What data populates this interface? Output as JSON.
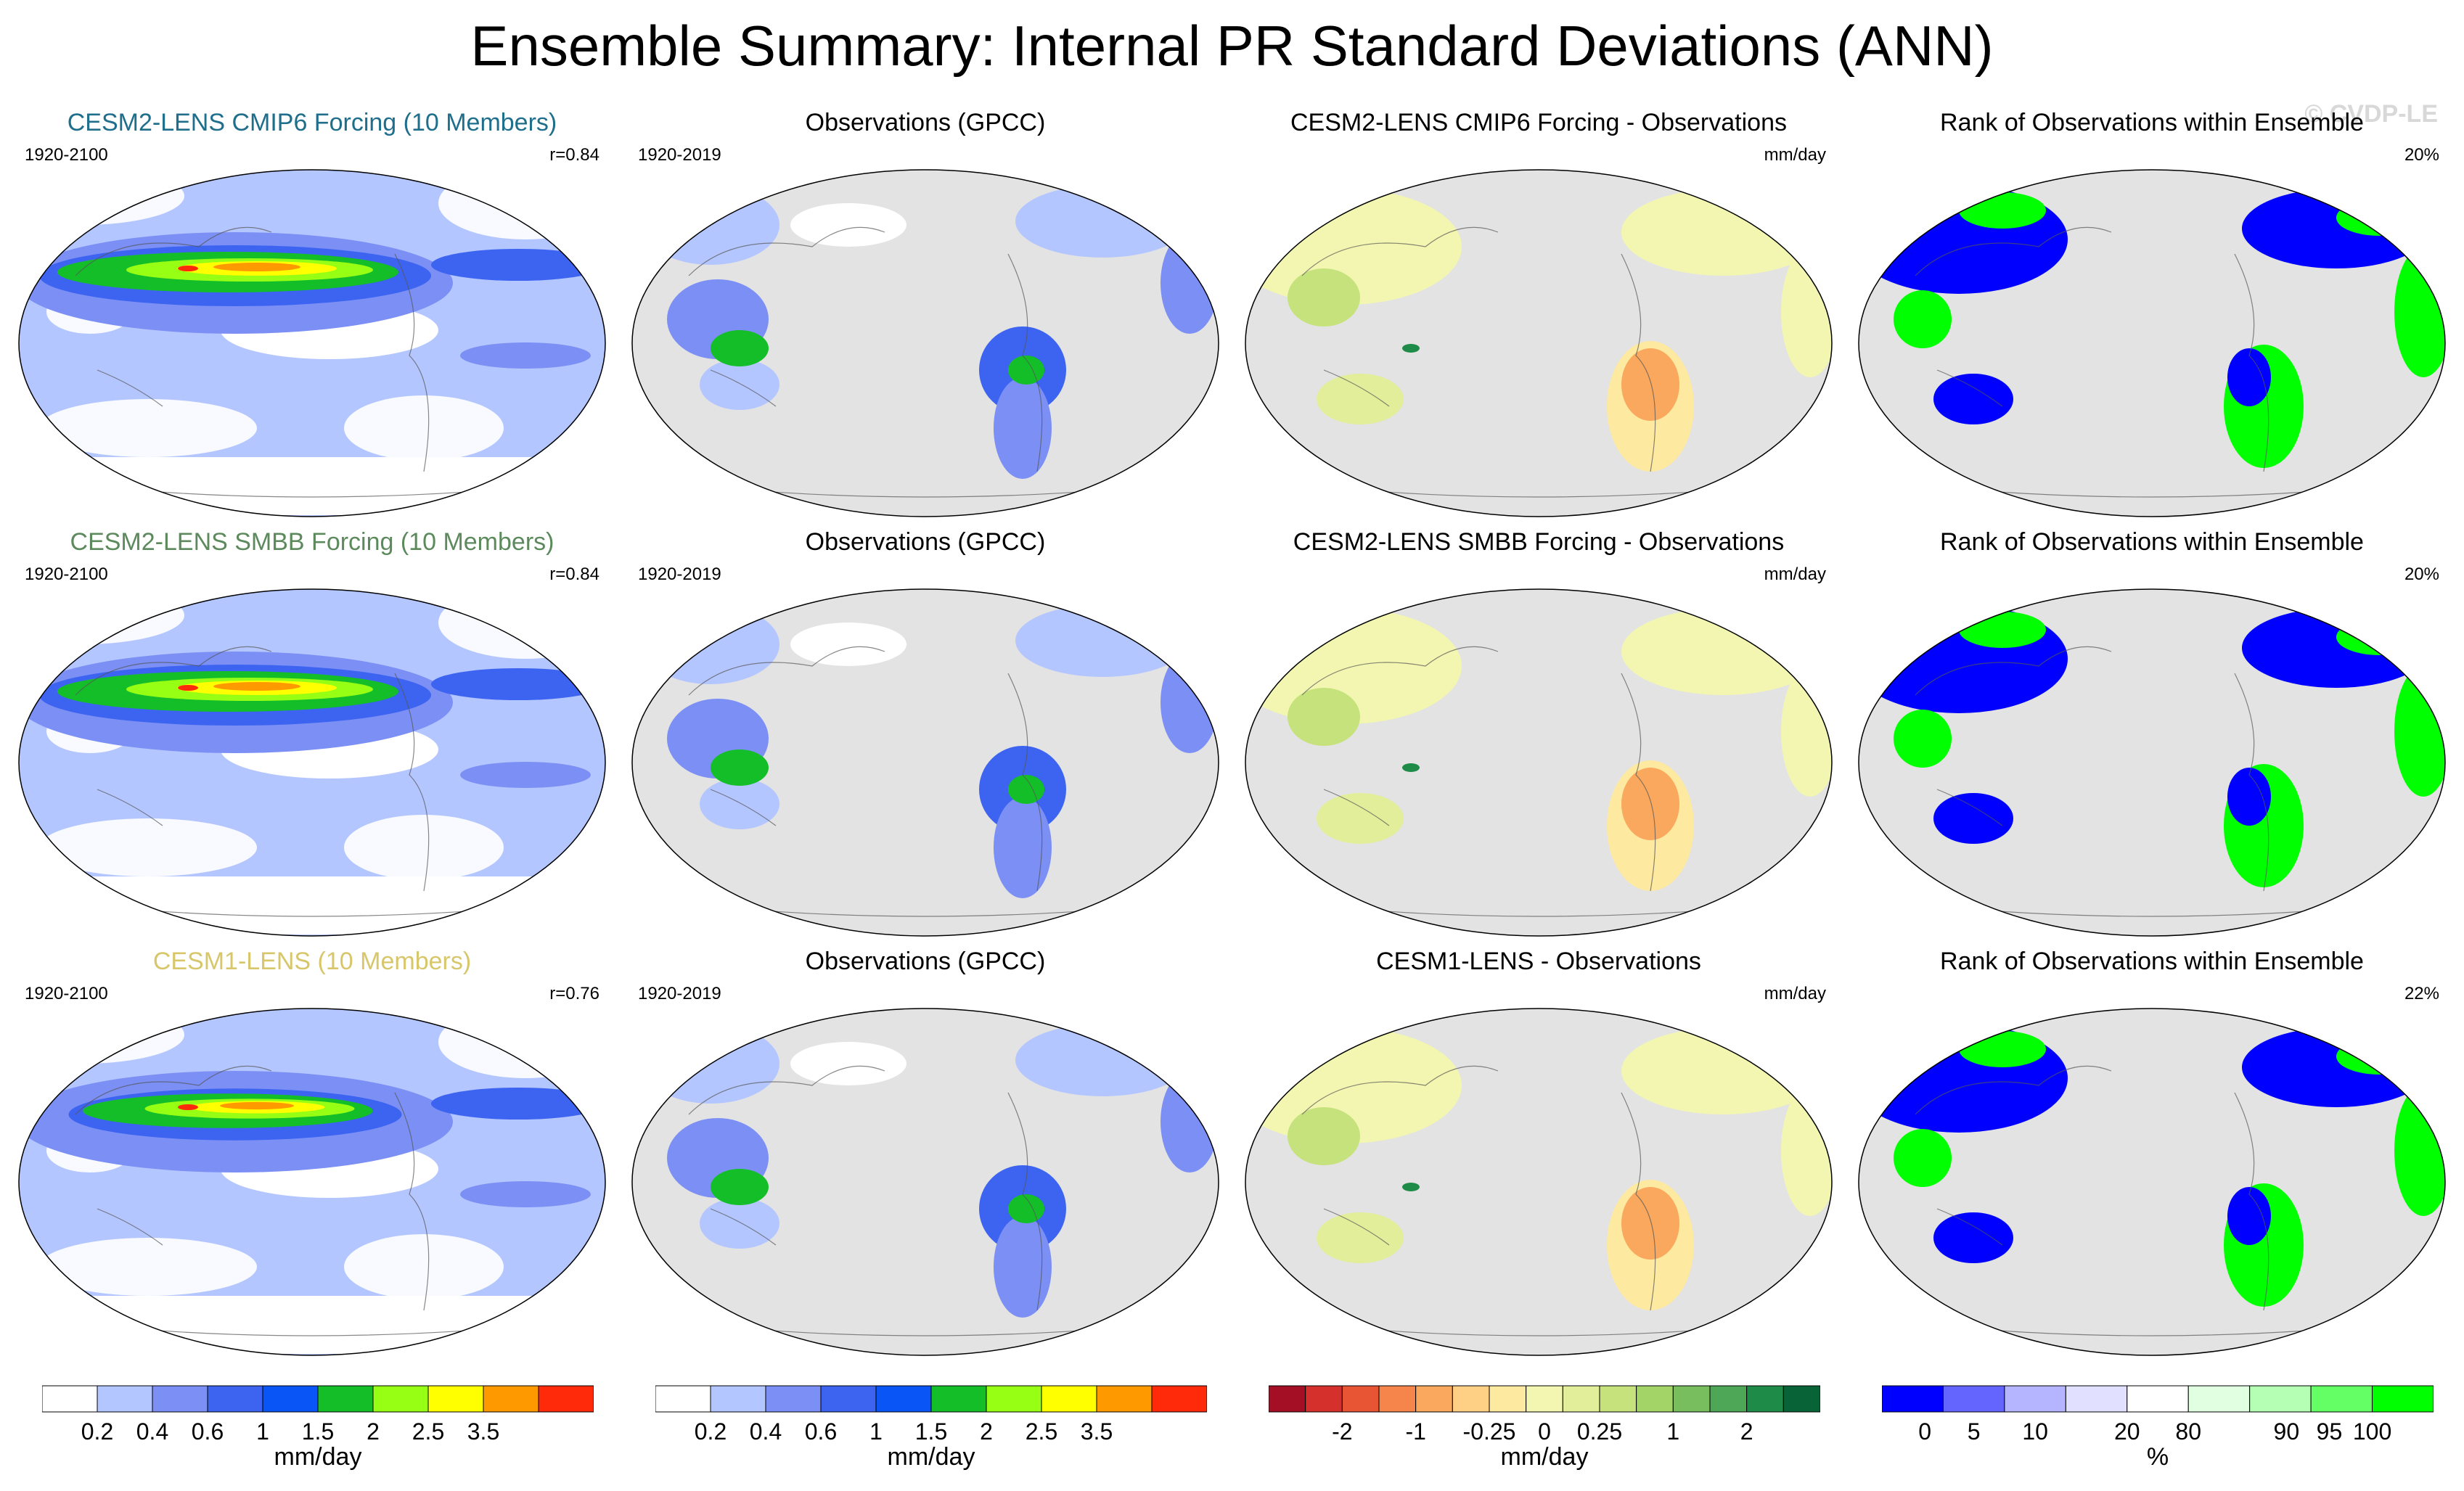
{
  "title": "Ensemble Summary: Internal PR Standard Deviations (ANN)",
  "watermark": "© CVDP-LE",
  "rows": [
    {
      "model": {
        "title": "CESM2-LENS CMIP6 Forcing (10 Members)",
        "title_color": "#1f6e8c",
        "period": "1920-2100",
        "corr": "r=0.84",
        "intensity": 1.0
      },
      "obs": {
        "title": "Observations (GPCC)",
        "period": "1920-2019"
      },
      "diff": {
        "title": "CESM2-LENS CMIP6 Forcing - Observations",
        "units": "mm/day"
      },
      "rank": {
        "title": "Rank of Observations within Ensemble",
        "pct": "20%"
      }
    },
    {
      "model": {
        "title": "CESM2-LENS SMBB Forcing (10 Members)",
        "title_color": "#5d8a5d",
        "period": "1920-2100",
        "corr": "r=0.84",
        "intensity": 1.0
      },
      "obs": {
        "title": "Observations (GPCC)",
        "period": "1920-2019"
      },
      "diff": {
        "title": "CESM2-LENS SMBB Forcing - Observations",
        "units": "mm/day"
      },
      "rank": {
        "title": "Rank of Observations within Ensemble",
        "pct": "20%"
      }
    },
    {
      "model": {
        "title": "CESM1-LENS (10 Members)",
        "title_color": "#d8c66a",
        "period": "1920-2100",
        "corr": "r=0.76",
        "intensity": 0.85
      },
      "obs": {
        "title": "Observations (GPCC)",
        "period": "1920-2019"
      },
      "diff": {
        "title": "CESM1-LENS - Observations",
        "units": "mm/day"
      },
      "rank": {
        "title": "Rank of Observations within Ensemble",
        "pct": "22%"
      }
    }
  ],
  "chart_data": [
    {
      "type": "heatmap",
      "name": "pr_stddev_colorbar",
      "label": "mm/day",
      "levels": [
        0.2,
        0.4,
        0.6,
        1,
        1.5,
        2,
        2.5,
        3.5
      ],
      "tick_labels": [
        "0.2",
        "0.4",
        "0.6",
        "1",
        "1.5",
        "2",
        "2.5",
        "3.5"
      ],
      "colors": [
        "#ffffff",
        "#b4c6ff",
        "#7b8ff5",
        "#3c64f0",
        "#0a55f5",
        "#14be28",
        "#96ff14",
        "#ffff00",
        "#ff9900",
        "#ff2a0a"
      ]
    },
    {
      "type": "heatmap",
      "name": "difference_colorbar",
      "label": "mm/day",
      "tick_labels": [
        "-2",
        "-1",
        "-0.25",
        "0",
        "0.25",
        "1",
        "2"
      ],
      "colors": [
        "#a50f26",
        "#d6302d",
        "#e85535",
        "#f5854a",
        "#f9a85e",
        "#fdd086",
        "#fde9a0",
        "#f2f6b0",
        "#e2ee9a",
        "#c6e27c",
        "#a3d468",
        "#78be5e",
        "#4ea657",
        "#1e8c48",
        "#086437"
      ]
    },
    {
      "type": "heatmap",
      "name": "rank_colorbar",
      "label": "%",
      "tick_labels": [
        "0",
        "5",
        "10",
        "20",
        "80",
        "90",
        "95",
        "100"
      ],
      "colors": [
        "#0000ff",
        "#6464ff",
        "#b4b4ff",
        "#e1e1ff",
        "#ffffff",
        "#e1ffe1",
        "#b4ffb4",
        "#64ff64",
        "#00ff00"
      ]
    }
  ]
}
